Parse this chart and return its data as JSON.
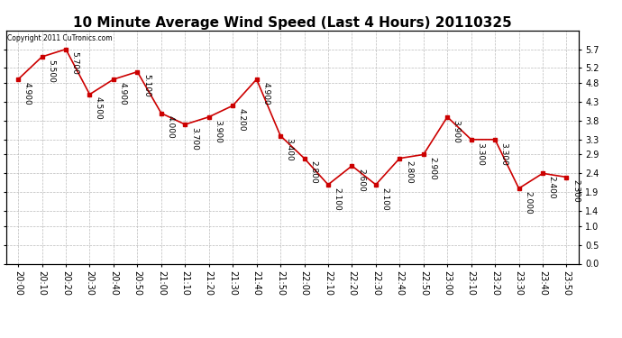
{
  "title": "10 Minute Average Wind Speed (Last 4 Hours) 20110325",
  "copyright": "Copyright 2011 CuTronics.com",
  "x_labels": [
    "20:00",
    "20:10",
    "20:20",
    "20:30",
    "20:40",
    "20:50",
    "21:00",
    "21:10",
    "21:20",
    "21:30",
    "21:40",
    "21:50",
    "22:00",
    "22:10",
    "22:20",
    "22:30",
    "22:40",
    "22:50",
    "23:00",
    "23:10",
    "23:20",
    "23:30",
    "23:40",
    "23:50"
  ],
  "y_values": [
    4.9,
    5.5,
    5.7,
    4.5,
    4.9,
    5.1,
    4.0,
    3.7,
    3.9,
    4.2,
    4.9,
    3.4,
    2.8,
    2.1,
    2.6,
    2.1,
    2.8,
    2.9,
    3.9,
    3.3,
    3.3,
    2.0,
    2.4,
    2.3
  ],
  "point_labels": [
    "4.900",
    "5.500",
    "5.700",
    "4.500",
    "4.900",
    "5.100",
    "4.000",
    "3.700",
    "3.900",
    "4.200",
    "4.900",
    "3.400",
    "2.800",
    "2.100",
    "2.600",
    "2.100",
    "2.800",
    "2.900",
    "3.900",
    "3.300",
    "3.300",
    "2.000",
    "2.400",
    "2.300"
  ],
  "line_color": "#cc0000",
  "marker_color": "#cc0000",
  "bg_color": "#ffffff",
  "grid_color": "#bbbbbb",
  "ylim": [
    0.0,
    6.2
  ],
  "yticks": [
    0.0,
    0.5,
    1.0,
    1.4,
    1.9,
    2.4,
    2.9,
    3.3,
    3.8,
    4.3,
    4.8,
    5.2,
    5.7
  ],
  "title_fontsize": 11,
  "tick_fontsize": 7,
  "annotation_fontsize": 6.5
}
